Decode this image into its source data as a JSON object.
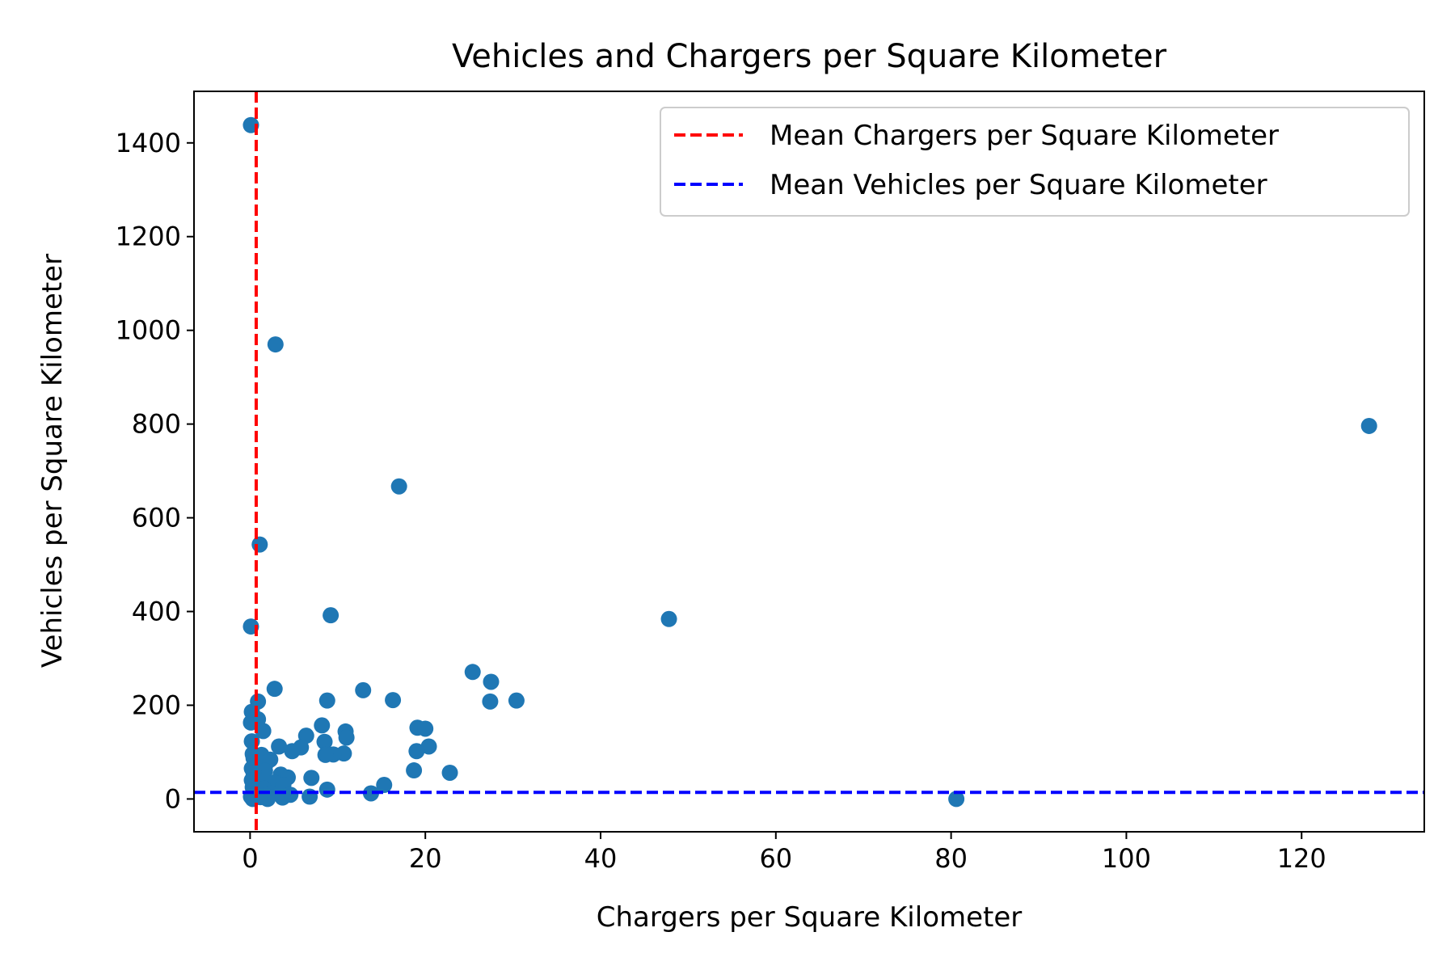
{
  "chart_data": {
    "type": "scatter",
    "title": "Vehicles and Chargers per Square Kilometer",
    "xlabel": "Chargers per Square Kilometer",
    "ylabel": "Vehicles per Square Kilometer",
    "xlim": [
      -6.4,
      134
    ],
    "ylim": [
      -70,
      1510
    ],
    "xticks": [
      0,
      20,
      40,
      60,
      80,
      100,
      120
    ],
    "yticks": [
      0,
      200,
      400,
      600,
      800,
      1000,
      1200,
      1400
    ],
    "grid": false,
    "legend_position": "top-right",
    "point_color": "#1f77b4",
    "series": [
      {
        "points": [
          [
            0.1,
            1438
          ],
          [
            2.9,
            970
          ],
          [
            127.7,
            796
          ],
          [
            17.0,
            667
          ],
          [
            1.1,
            543
          ],
          [
            47.8,
            384
          ],
          [
            9.2,
            392
          ],
          [
            0.1,
            368
          ],
          [
            25.4,
            271
          ],
          [
            27.5,
            250
          ],
          [
            2.8,
            235
          ],
          [
            12.9,
            232
          ],
          [
            16.3,
            211
          ],
          [
            8.8,
            210
          ],
          [
            30.4,
            210
          ],
          [
            27.4,
            208
          ],
          [
            0.9,
            208
          ],
          [
            0.2,
            186
          ],
          [
            0.9,
            170
          ],
          [
            0.1,
            163
          ],
          [
            8.2,
            157
          ],
          [
            19.1,
            152
          ],
          [
            20.0,
            150
          ],
          [
            1.5,
            145
          ],
          [
            10.9,
            144
          ],
          [
            6.4,
            135
          ],
          [
            11.0,
            131
          ],
          [
            0.2,
            123
          ],
          [
            8.5,
            122
          ],
          [
            20.4,
            112
          ],
          [
            3.3,
            112
          ],
          [
            5.8,
            110
          ],
          [
            4.8,
            102
          ],
          [
            19.0,
            102
          ],
          [
            10.7,
            97
          ],
          [
            9.5,
            95
          ],
          [
            8.6,
            94
          ],
          [
            0.3,
            96
          ],
          [
            1.3,
            94
          ],
          [
            0.4,
            87
          ],
          [
            2.3,
            84
          ],
          [
            1.9,
            78
          ],
          [
            0.5,
            72
          ],
          [
            0.2,
            65
          ],
          [
            18.7,
            61
          ],
          [
            1.7,
            60
          ],
          [
            22.8,
            56
          ],
          [
            0.4,
            55
          ],
          [
            3.5,
            52
          ],
          [
            4.3,
            46
          ],
          [
            7.0,
            45
          ],
          [
            0.2,
            40
          ],
          [
            1.1,
            38
          ],
          [
            2.7,
            35
          ],
          [
            3.8,
            30
          ],
          [
            15.3,
            30
          ],
          [
            0.3,
            25
          ],
          [
            1.6,
            22
          ],
          [
            8.8,
            20
          ],
          [
            0.6,
            18
          ],
          [
            13.8,
            12
          ],
          [
            2.4,
            12
          ],
          [
            4.6,
            9
          ],
          [
            6.8,
            5
          ],
          [
            0.1,
            5
          ],
          [
            1.2,
            4
          ],
          [
            3.7,
            3
          ],
          [
            80.6,
            0
          ],
          [
            0.3,
            0
          ],
          [
            2.0,
            0
          ]
        ]
      }
    ],
    "mean_lines": [
      {
        "name": "Mean Chargers per Square Kilometer",
        "orientation": "vertical",
        "value": 0.7,
        "color": "#ff0000"
      },
      {
        "name": "Mean Vehicles per Square Kilometer",
        "orientation": "horizontal",
        "value": 14,
        "color": "#0000ff"
      }
    ]
  }
}
